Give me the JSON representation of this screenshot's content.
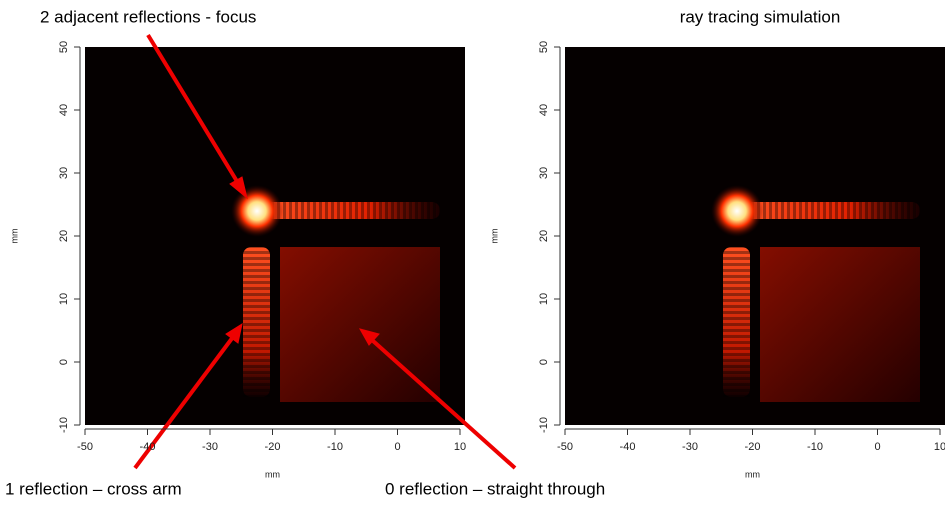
{
  "chart_data": [
    {
      "type": "image",
      "x_label": "mm",
      "y_label": "mm",
      "xlim": [
        -50,
        10
      ],
      "ylim": [
        -10,
        50
      ],
      "xticks": [
        -50,
        -40,
        -30,
        -20,
        -10,
        0,
        10
      ],
      "yticks": [
        -10,
        0,
        10,
        20,
        30,
        40,
        50
      ],
      "annotations": [
        "2 adjacent reflections - focus",
        "1 reflection – cross arm",
        "0 reflection – straight through"
      ]
    },
    {
      "type": "image",
      "title": "ray tracing simulation",
      "x_label": "mm",
      "y_label": "mm",
      "xlim": [
        -50,
        10
      ],
      "ylim": [
        -10,
        50
      ],
      "xticks": [
        -50,
        -40,
        -30,
        -20,
        -10,
        0,
        10
      ],
      "yticks": [
        -10,
        0,
        10,
        20,
        30,
        40,
        50
      ]
    }
  ]
}
